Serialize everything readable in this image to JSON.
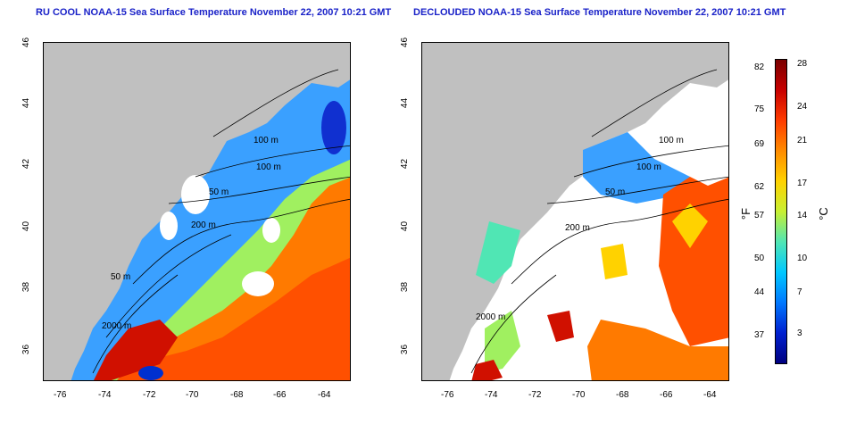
{
  "panels": [
    {
      "title": "RU COOL NOAA-15 Sea Surface Temperature November 22, 2007 10:21 GMT",
      "contour_labels": [
        "100 m",
        "100 m",
        "50 m",
        "200 m",
        "50 m",
        "2000 m"
      ]
    },
    {
      "title": "DECLOUDED NOAA-15 Sea Surface Temperature November 22, 2007 10:21 GMT",
      "contour_labels": [
        "100 m",
        "100 m",
        "50 m",
        "200 m",
        "2000 m"
      ]
    }
  ],
  "axes": {
    "x_ticks": [
      "-76",
      "-74",
      "-72",
      "-70",
      "-68",
      "-66",
      "-64"
    ],
    "y_ticks": [
      "46",
      "44",
      "42",
      "40",
      "38",
      "36"
    ]
  },
  "colorbar": {
    "fahrenheit_ticks": [
      "82",
      "75",
      "69",
      "62",
      "57",
      "50",
      "44",
      "37"
    ],
    "celsius_ticks": [
      "28",
      "24",
      "21",
      "17",
      "14",
      "10",
      "7",
      "3"
    ],
    "fahrenheit_unit": "°F",
    "celsius_unit": "°C",
    "colors": [
      "#7a0000",
      "#c80000",
      "#ff3c00",
      "#ff8c00",
      "#ffd200",
      "#c8f032",
      "#50e6b4",
      "#00c8ff",
      "#0078ff",
      "#0020d0",
      "#000080"
    ]
  },
  "colors": {
    "land": "#c0c0c0",
    "ocean_no_data": "#ffffff",
    "title": "#1a22c8"
  }
}
